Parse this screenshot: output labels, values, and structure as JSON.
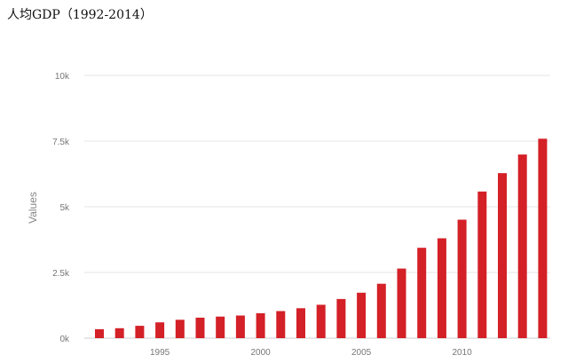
{
  "page": {
    "title": "人均GDP（1992-2014）"
  },
  "chart_data": {
    "type": "bar",
    "title": "人均GDP（1992-2014）",
    "xlabel": "",
    "ylabel": "Values",
    "categories": [
      1992,
      1993,
      1994,
      1995,
      1996,
      1997,
      1998,
      1999,
      2000,
      2001,
      2002,
      2003,
      2004,
      2005,
      2006,
      2007,
      2008,
      2009,
      2010,
      2011,
      2012,
      2013,
      2014
    ],
    "series": [
      {
        "values": [
          340,
          380,
          470,
          600,
          700,
          780,
          820,
          860,
          950,
          1030,
          1140,
          1270,
          1490,
          1730,
          2070,
          2650,
          3440,
          3800,
          4510,
          5580,
          6280,
          6990,
          7590
        ]
      }
    ],
    "ylim": [
      0,
      10000
    ],
    "yticks": [
      0,
      2500,
      5000,
      7500,
      10000
    ],
    "ytick_labels": [
      "0k",
      "2.5k",
      "5k",
      "7.5k",
      "10k"
    ],
    "xticks": [
      1995,
      2000,
      2005,
      2010
    ],
    "xtick_labels": [
      "1995",
      "2000",
      "2005",
      "2010"
    ],
    "grid": true,
    "legend": "none",
    "colors": {
      "bar": "#d42027",
      "grid": "#e6e6e6",
      "tick_text": "#777777",
      "axis_label": "#888888"
    }
  }
}
